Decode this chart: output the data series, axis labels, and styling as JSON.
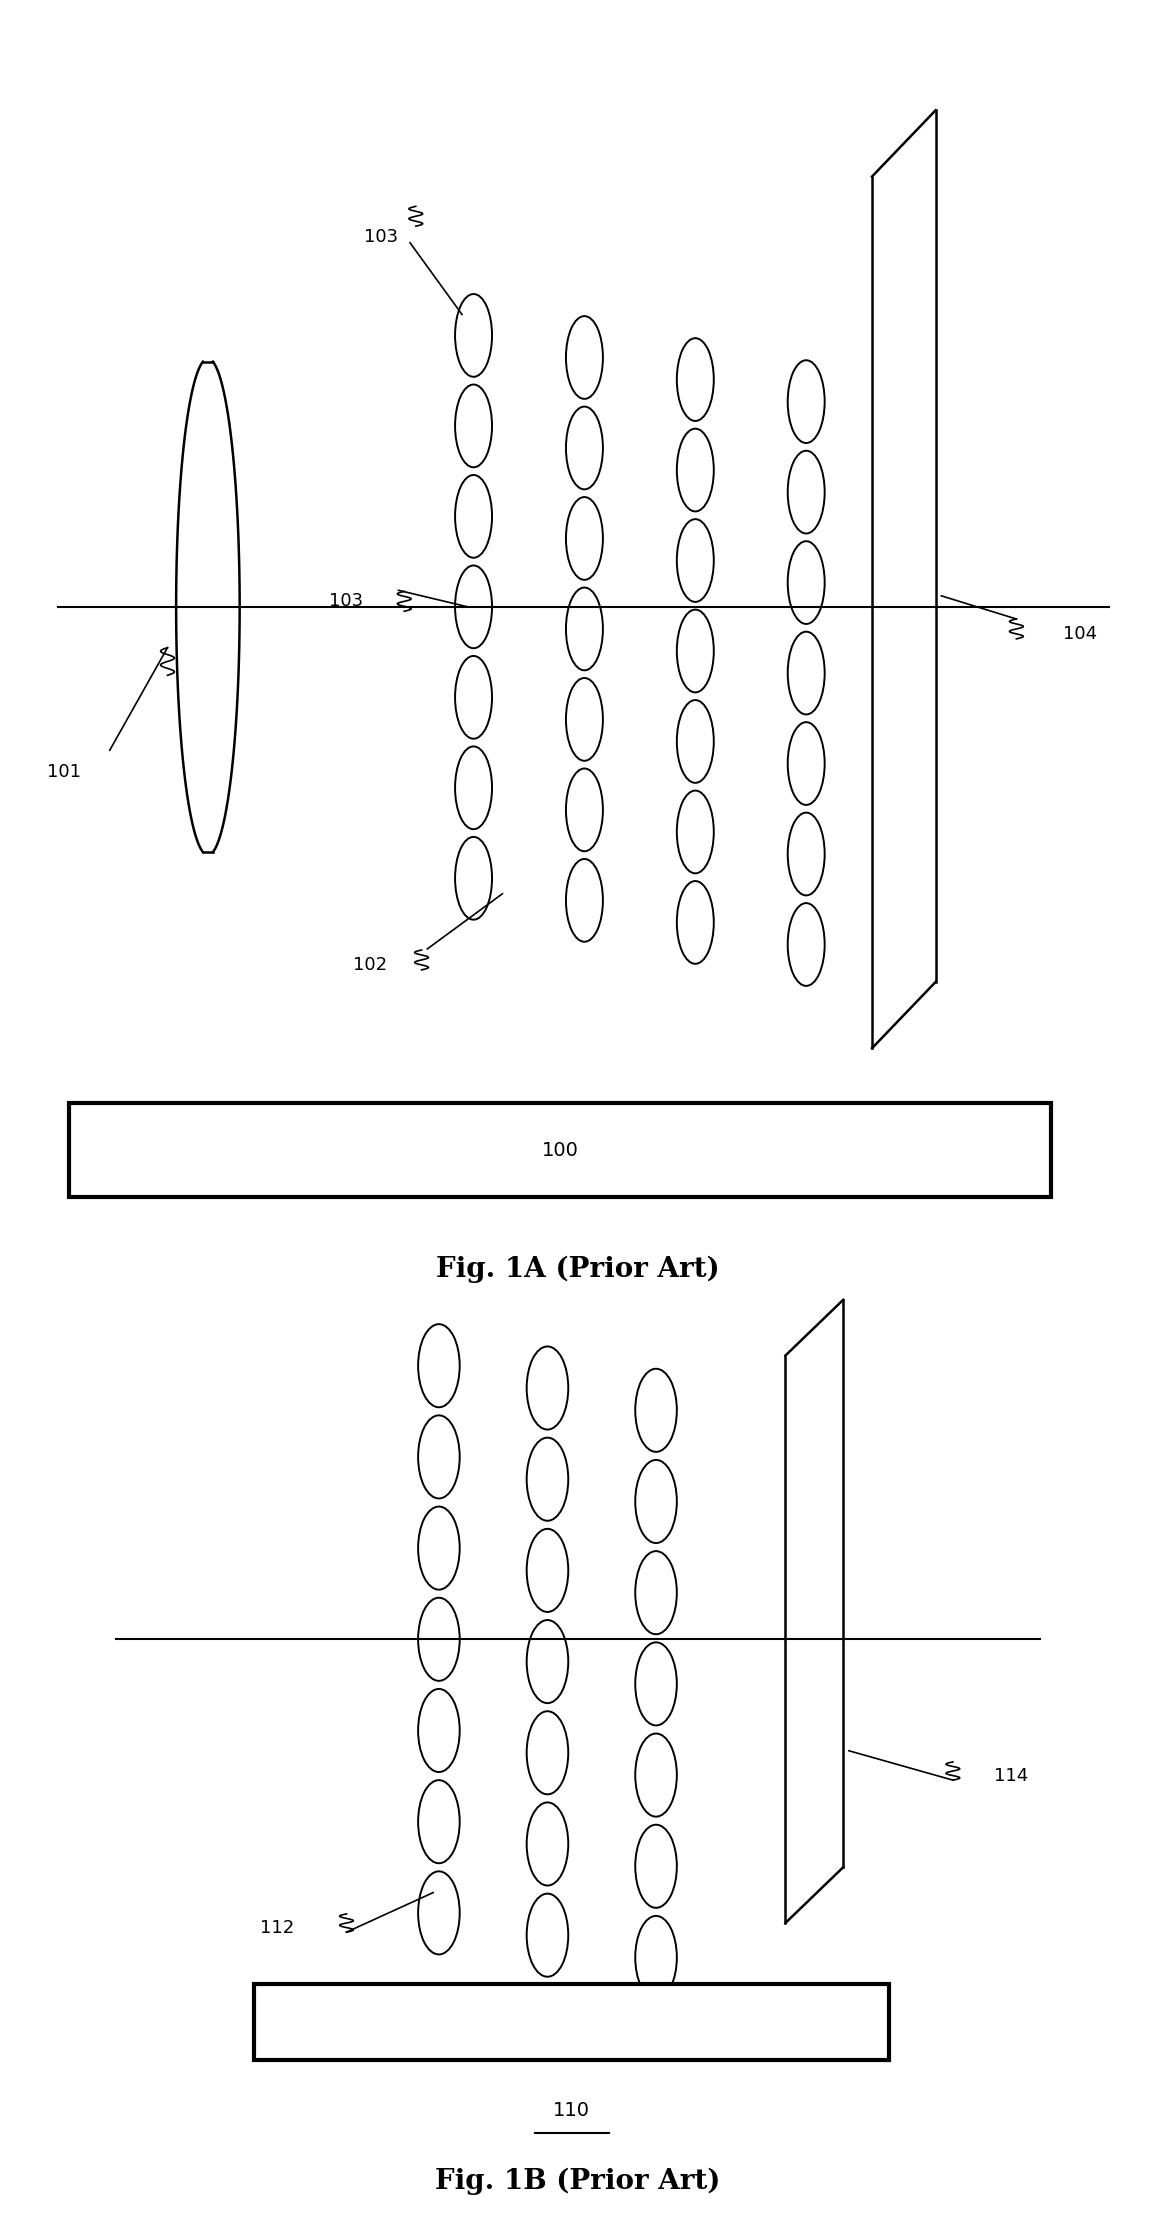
{
  "fig_width": 11.55,
  "fig_height": 22.27,
  "bg_color": "#ffffff",
  "fig1a_title": "Fig. 1A (Prior Art)",
  "fig1b_title": "Fig. 1B (Prior Art)",
  "label_101": "101",
  "label_102": "102",
  "label_103": "103",
  "label_104": "104",
  "label_100": "100",
  "label_110": "110",
  "label_112": "112",
  "label_114": "114",
  "lw_main": 1.8,
  "lw_thin": 1.2,
  "lw_ellipse": 1.4,
  "lw_base": 3.0,
  "font_label": 13,
  "font_title": 20
}
